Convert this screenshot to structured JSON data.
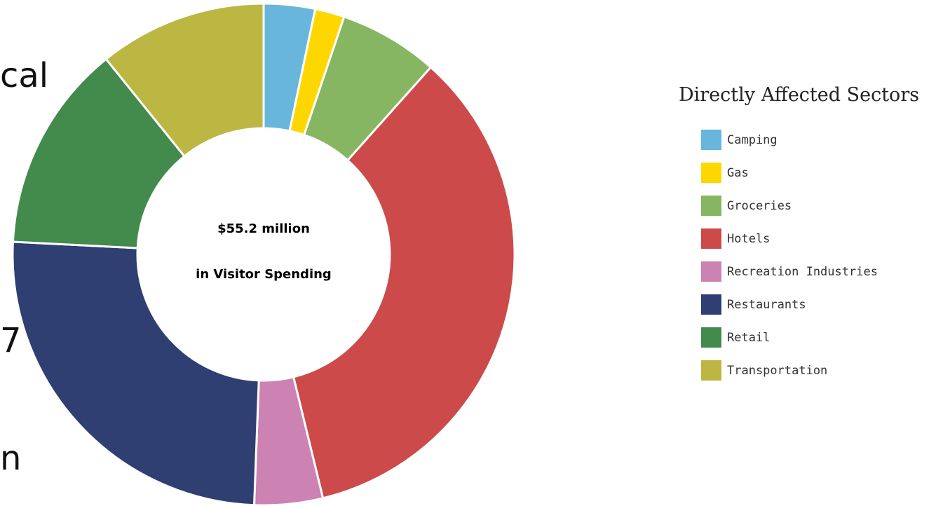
{
  "slide_fragments": [
    "cal",
    "7",
    "n"
  ],
  "chart_data": {
    "type": "pie",
    "center_label": [
      "$55.2 million",
      "in Visitor Spending"
    ],
    "legend_title": "Directly Affected Sectors",
    "categories": [
      "Camping",
      "Gas",
      "Groceries",
      "Hotels",
      "Recreation Industries",
      "Restaurants",
      "Retail",
      "Transportation"
    ],
    "values": [
      3.3,
      1.9,
      6.4,
      34.6,
      4.4,
      25.2,
      13.4,
      10.8
    ],
    "colors": [
      "#68b6dc",
      "#ffd700",
      "#86b661",
      "#cc4a4a",
      "#cc82b2",
      "#2f3f72",
      "#438a4d",
      "#bbb742"
    ],
    "legend_placement": "right"
  }
}
